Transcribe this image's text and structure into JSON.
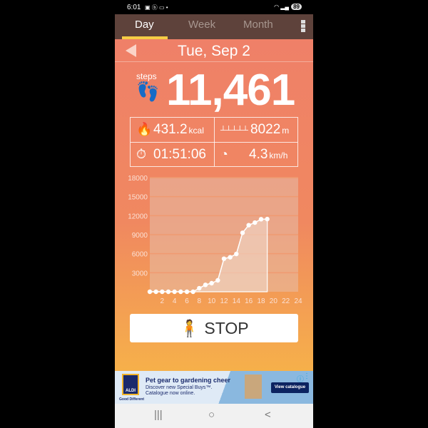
{
  "status_bar": {
    "time": "6:01",
    "icons": "▣ ⓑ ▭ •",
    "battery": "89"
  },
  "tabs": [
    {
      "label": "Day",
      "active": true
    },
    {
      "label": "Week"
    },
    {
      "label": "Month"
    }
  ],
  "date": "Tue, Sep 2",
  "steps": {
    "label": "steps",
    "value": "11,461"
  },
  "stats": {
    "calories": {
      "value": "431.2",
      "unit": "kcal"
    },
    "distance": {
      "value": "8022",
      "unit": "m"
    },
    "duration": {
      "value": "01:51:06"
    },
    "speed": {
      "value": "4.3",
      "unit": "km/h"
    }
  },
  "stop_label": "STOP",
  "colors": {
    "tabbar": "#5e423b",
    "indicator": "#f5cd45",
    "gradient_top": "#ef8068",
    "gradient_bottom": "#f6b04a"
  },
  "chart_data": {
    "type": "area",
    "x": [
      0,
      1,
      2,
      3,
      4,
      5,
      6,
      7,
      8,
      9,
      10,
      11,
      12,
      13,
      14,
      15,
      16,
      17,
      18,
      19
    ],
    "values": [
      0,
      0,
      0,
      0,
      0,
      0,
      0,
      0,
      560,
      1090,
      1350,
      1800,
      5210,
      5440,
      5960,
      9300,
      10500,
      10910,
      11440,
      11461
    ],
    "ylim": [
      0,
      18000
    ],
    "yticks": [
      "3000",
      "6000",
      "9000",
      "12000",
      "15000",
      "18000"
    ],
    "xlim": [
      0,
      24
    ],
    "xticks": [
      "2",
      "4",
      "6",
      "8",
      "10",
      "12",
      "14",
      "16",
      "18",
      "20",
      "22",
      "24"
    ],
    "grid": true
  },
  "ad": {
    "brand": "ALDI",
    "tagline": "Good Different",
    "title": "Pet gear to gardening cheer",
    "subtitle": "Discover new Special Buys™. Catalogue now online.",
    "button": "View catalogue"
  },
  "nav": {
    "recents": "|||",
    "home": "○",
    "back": "<"
  }
}
